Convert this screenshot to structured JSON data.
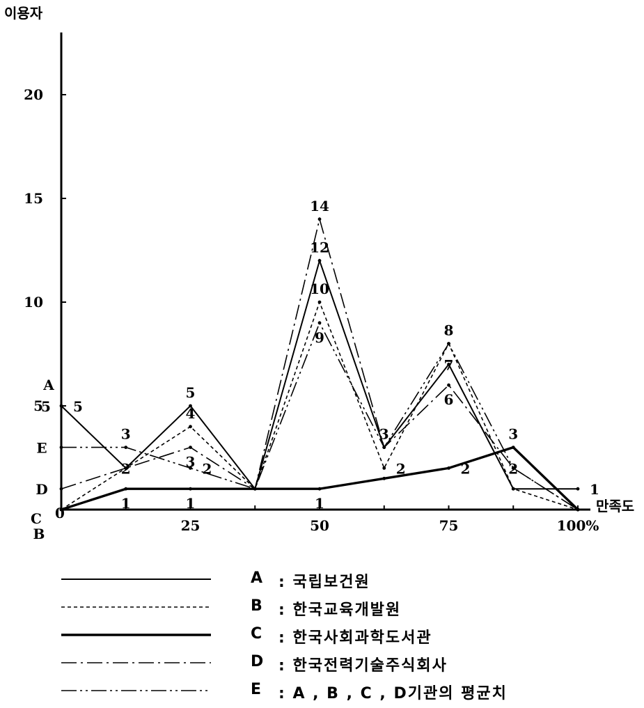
{
  "chart_data": {
    "type": "line",
    "ylabel": "이용자",
    "xlabel": "만족도",
    "x": [
      0,
      12.5,
      25,
      37.5,
      50,
      62.5,
      75,
      87.5,
      100
    ],
    "xticks": [
      "25",
      "50",
      "75",
      "100%"
    ],
    "xtick_values": [
      25,
      50,
      75,
      100
    ],
    "yticks": [
      "20",
      "15",
      "10",
      "5"
    ],
    "ytick_values": [
      20,
      15,
      10,
      5
    ],
    "ylim": [
      0,
      23
    ],
    "xlim": [
      0,
      100
    ],
    "grid": false,
    "series": [
      {
        "key": "A",
        "name": "국립보건원",
        "style": "solid",
        "values": [
          5,
          2,
          5,
          1,
          12,
          3,
          7,
          1,
          1
        ]
      },
      {
        "key": "B",
        "name": "한국교육개발원",
        "style": "dashed",
        "values": [
          0,
          2,
          4,
          1,
          10,
          2,
          8,
          1,
          0
        ]
      },
      {
        "key": "C",
        "name": "한국사회과학도서관",
        "style": "bold",
        "values": [
          0,
          1,
          1,
          1,
          1,
          1.5,
          2,
          3,
          0
        ]
      },
      {
        "key": "D",
        "name": "한국전력기술주식회사",
        "style": "dashdot",
        "values": [
          1,
          2,
          3,
          1,
          14,
          3,
          6,
          2,
          0
        ]
      },
      {
        "key": "E",
        "name": "A , B , C , D기관의 평균치",
        "style": "dashdotdot",
        "values": [
          3,
          3,
          2,
          1,
          9,
          3,
          8,
          2,
          0
        ]
      }
    ],
    "point_labels": [
      {
        "text": "5",
        "x": 0,
        "y": 5,
        "side": "left"
      },
      {
        "text": "5",
        "x": 0,
        "y": 5,
        "side": "right"
      },
      {
        "text": "3",
        "x": 12.5,
        "y": 3,
        "side": "above"
      },
      {
        "text": "2",
        "x": 12.5,
        "y": 2,
        "side": "over"
      },
      {
        "text": "5",
        "x": 25,
        "y": 5,
        "side": "above"
      },
      {
        "text": "4",
        "x": 25,
        "y": 4,
        "side": "above"
      },
      {
        "text": "3",
        "x": 25,
        "y": 3,
        "side": "below"
      },
      {
        "text": "2",
        "x": 25,
        "y": 2,
        "side": "right"
      },
      {
        "text": "14",
        "x": 50,
        "y": 14,
        "side": "above"
      },
      {
        "text": "12",
        "x": 50,
        "y": 12,
        "side": "above"
      },
      {
        "text": "10",
        "x": 50,
        "y": 10,
        "side": "above"
      },
      {
        "text": "9",
        "x": 50,
        "y": 9,
        "side": "below"
      },
      {
        "text": "3",
        "x": 62.5,
        "y": 3,
        "side": "above"
      },
      {
        "text": "2",
        "x": 62.5,
        "y": 2,
        "side": "right"
      },
      {
        "text": "8",
        "x": 75,
        "y": 8,
        "side": "above"
      },
      {
        "text": "7",
        "x": 75,
        "y": 7,
        "side": "over"
      },
      {
        "text": "6",
        "x": 75,
        "y": 6,
        "side": "below"
      },
      {
        "text": "2",
        "x": 75,
        "y": 2,
        "side": "right"
      },
      {
        "text": "3",
        "x": 87.5,
        "y": 3,
        "side": "above"
      },
      {
        "text": "2",
        "x": 87.5,
        "y": 2,
        "side": "over"
      },
      {
        "text": "1",
        "x": 100,
        "y": 1,
        "side": "right"
      },
      {
        "text": "1",
        "x": 12.5,
        "y": 1,
        "side": "below"
      },
      {
        "text": "1",
        "x": 25,
        "y": 1,
        "side": "below"
      },
      {
        "text": "1",
        "x": 50,
        "y": 1,
        "side": "below"
      }
    ],
    "series_markers": [
      {
        "text": "A",
        "x": 0,
        "y": 5.5
      },
      {
        "text": "E",
        "x": 0,
        "y": 3
      },
      {
        "text": "D",
        "x": 0,
        "y": 1
      },
      {
        "text": "C",
        "x": 0,
        "y": 0
      },
      {
        "text": "0",
        "x": 0,
        "y": 0
      },
      {
        "text": "B",
        "x": 0,
        "y": -1
      }
    ]
  },
  "legend": [
    {
      "key": "A",
      "sep": ":",
      "label": "국립보건원",
      "style": "solid"
    },
    {
      "key": "B",
      "sep": ":",
      "label": "한국교육개발원",
      "style": "dashed"
    },
    {
      "key": "C",
      "sep": ":",
      "label": "한국사회과학도서관",
      "style": "bold"
    },
    {
      "key": "D",
      "sep": ":",
      "label": "한국전력기술주식회사",
      "style": "dashdot"
    },
    {
      "key": "E",
      "sep": ":",
      "label": "A , B , C , D기관의 평균치",
      "style": "dashdotdot"
    }
  ]
}
